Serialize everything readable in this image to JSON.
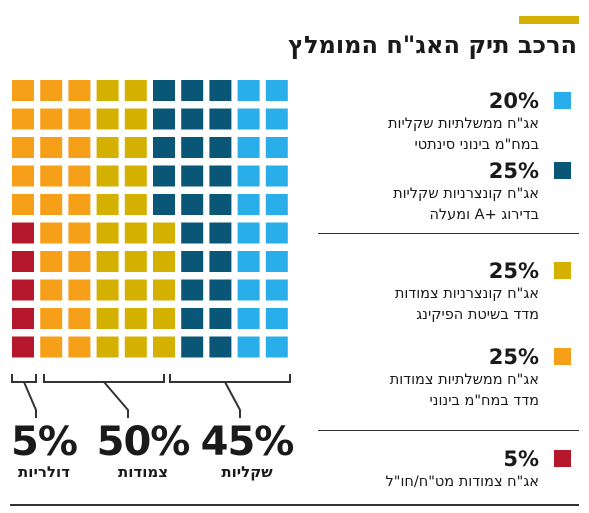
{
  "title": "הרכב תיק האג\"ח המומלץ",
  "colors": {
    "accent": "#d4b000",
    "light_blue": "#29aee9",
    "dark_blue": "#0a5677",
    "mustard": "#d4b000",
    "orange": "#f6a01a",
    "red": "#b5172c"
  },
  "chart_data": {
    "type": "waffle",
    "title": "הרכב תיק האג\"ח המומלץ",
    "grid": {
      "rows": 10,
      "cols": 10
    },
    "categories": [
      {
        "name": "אג\"ח ממשלתיות שקליות במח\"מ בינוני סינתטי",
        "percent": 20,
        "color": "#29aee9"
      },
      {
        "name": "אג\"ח קונצרניות שקליות בדירוג +A ומעלה",
        "percent": 25,
        "color": "#0a5677"
      },
      {
        "name": "אג\"ח קונצרניות צמודות מדד בשיטת הפיקינג",
        "percent": 25,
        "color": "#d4b000"
      },
      {
        "name": "אג\"ח ממשלתיות צמודות מדד במח\"מ בינוני",
        "percent": 25,
        "color": "#f6a01a"
      },
      {
        "name": "אג\"ח צמודות מט\"ח/חו\"ל",
        "percent": 5,
        "color": "#b5172c"
      }
    ],
    "groups": [
      {
        "label": "שקליות",
        "percent": 45
      },
      {
        "label": "צמודות",
        "percent": 50
      },
      {
        "label": "דולריות",
        "percent": 5
      }
    ]
  },
  "legend": [
    {
      "pct": "20%",
      "line1": "אג\"ח ממשלתיות שקליות",
      "line2": "במח\"מ בינוני סינתטי",
      "color": "#29aee9"
    },
    {
      "pct": "25%",
      "line1": "אג\"ח קונצרניות שקליות",
      "line2": "בדירוג +A ומעלה",
      "color": "#0a5677"
    },
    {
      "pct": "25%",
      "line1": "אג\"ח קונצרניות צמודות",
      "line2": "מדד בשיטת הפיקינג",
      "color": "#d4b000"
    },
    {
      "pct": "25%",
      "line1": "אג\"ח ממשלתיות צמודות",
      "line2": "מדד במח\"מ בינוני",
      "color": "#f6a01a"
    },
    {
      "pct": "5%",
      "line1": "אג\"ח צמודות מט\"ח/חו\"ל",
      "line2": "",
      "color": "#b5172c"
    }
  ],
  "summary": [
    {
      "pct": "45%",
      "label": "שקליות"
    },
    {
      "pct": "50%",
      "label": "צמודות"
    },
    {
      "pct": "5%",
      "label": "דולריות"
    }
  ]
}
